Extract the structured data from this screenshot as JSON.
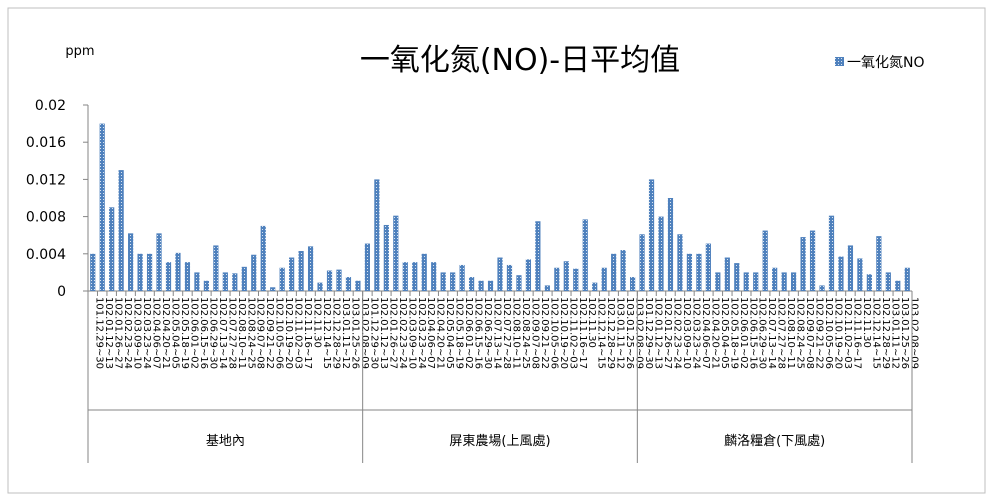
{
  "chart_data": {
    "type": "bar",
    "title": "一氧化氮(NO)-日平均值",
    "ylabel": "ppm",
    "ylim": [
      0,
      0.02
    ],
    "yticks": [
      0,
      0.004,
      0.008,
      0.012,
      0.016,
      0.02
    ],
    "grid": false,
    "legend": "top-right",
    "series": [
      {
        "name": "一氧化氮NO",
        "color": "#4f81bd"
      }
    ],
    "groups": [
      {
        "name": "基地內",
        "categories": [
          "101.12.29~30",
          "102.01.12~13",
          "102.01.26~27",
          "102.02.23~24",
          "102.03.09~10",
          "102.03.23~24",
          "102.04.06~07",
          "102.04.20~21",
          "102.05.04~05",
          "102.05.18~19",
          "102.06.01~02",
          "102.06.15~16",
          "102.06.29~30",
          "102.07.13~14",
          "102.07.27~28",
          "102.08.10~11",
          "102.08.24~25",
          "102.09.07~08",
          "102.09.21~22",
          "102.10.05~06",
          "102.10.19~20",
          "102.11.02~03",
          "102.11.16~17",
          "102.11.30",
          "102.12.14~15",
          "102.12.28~29",
          "103.01.11~12",
          "103.01.25~26",
          "103.02.08~09"
        ],
        "values": [
          0.004,
          0.018,
          0.009,
          0.013,
          0.0062,
          0.004,
          0.004,
          0.0062,
          0.0031,
          0.0041,
          0.0031,
          0.002,
          0.0011,
          0.0049,
          0.002,
          0.0019,
          0.0026,
          0.0039,
          0.007,
          0.0004,
          0.0025,
          0.0036,
          0.0043,
          0.0048,
          0.0009,
          0.0022,
          0.0023,
          0.0015,
          0.0011
        ]
      },
      {
        "name": "屏東農場(上風處)",
        "categories": [
          "101.12.29~30",
          "102.01.12~13",
          "102.01.26~27",
          "102.02.23~24",
          "102.03.09~10",
          "102.03.23~24",
          "102.04.06~07",
          "102.04.20~21",
          "102.05.04~05",
          "102.05.18~19",
          "102.06.01~02",
          "102.06.15~16",
          "102.06.29~30",
          "102.07.13~14",
          "102.07.27~28",
          "102.08.10~11",
          "102.08.24~25",
          "102.09.07~08",
          "102.09.21~22",
          "102.10.05~06",
          "102.10.19~20",
          "102.11.02~03",
          "102.11.16~17",
          "102.11.30",
          "102.12.14~15",
          "102.12.28~29",
          "103.01.11~12",
          "103.01.25~26",
          "103.02.08~09"
        ],
        "values": [
          0.0051,
          0.012,
          0.0071,
          0.0081,
          0.0031,
          0.0031,
          0.004,
          0.0031,
          0.002,
          0.002,
          0.0028,
          0.0015,
          0.0011,
          0.0011,
          0.0036,
          0.0028,
          0.0017,
          0.0034,
          0.0075,
          0.0006,
          0.0025,
          0.0032,
          0.0024,
          0.0077,
          0.0009,
          0.0025,
          0.004,
          0.0044,
          0.0015
        ]
      },
      {
        "name": "麟洛糧倉(下風處)",
        "categories": [
          "101.12.29~30",
          "102.01.12~13",
          "102.01.26~27",
          "102.02.23~24",
          "102.03.09~10",
          "102.03.23~24",
          "102.04.06~07",
          "102.04.20~21",
          "102.05.04~05",
          "102.05.18~19",
          "102.06.01~02",
          "102.06.15~16",
          "102.06.29~30",
          "102.07.13~14",
          "102.07.27~28",
          "102.08.10~11",
          "102.08.24~25",
          "102.09.07~08",
          "102.09.21~22",
          "102.10.05~06",
          "102.10.19~20",
          "102.11.02~03",
          "102.11.16~17",
          "102.11.30",
          "102.12.14~15",
          "102.12.28~29",
          "103.01.11~12",
          "103.01.25~26",
          "103.02.08~09"
        ],
        "values": [
          0.0061,
          0.012,
          0.008,
          0.01,
          0.0061,
          0.004,
          0.004,
          0.0051,
          0.002,
          0.0036,
          0.003,
          0.002,
          0.002,
          0.0065,
          0.0025,
          0.002,
          0.002,
          0.0058,
          0.0065,
          0.0006,
          0.0081,
          0.0037,
          0.0049,
          0.0035,
          0.0018,
          0.0059,
          0.002,
          0.0011,
          0.0025
        ]
      }
    ]
  }
}
